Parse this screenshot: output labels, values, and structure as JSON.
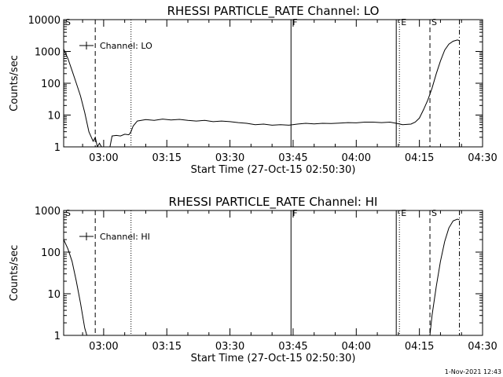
{
  "chart_data": [
    {
      "type": "line",
      "title": "RHESSI PARTICLE_RATE Channel: LO",
      "xlabel": "Start Time (27-Oct-15 02:50:30)",
      "ylabel": "Counts/sec",
      "yscale": "log",
      "ylim": [
        1,
        10000
      ],
      "y_ticks": [
        "1",
        "10",
        "100",
        "1000",
        "10000"
      ],
      "x_ticks": [
        "03:00",
        "03:15",
        "03:30",
        "03:45",
        "04:00",
        "04:15",
        "04:30"
      ],
      "grid": false,
      "legend": {
        "position": "top-left",
        "entries": [
          "Channel: LO"
        ]
      },
      "markers": [
        {
          "label": "S",
          "time": "02:50:30",
          "style": "dashed"
        },
        {
          "label": "",
          "time": "02:58:00",
          "style": "dashed"
        },
        {
          "label": "",
          "time": "03:06:30",
          "style": "dotted"
        },
        {
          "label": "F",
          "time": "03:44:30",
          "style": "solid"
        },
        {
          "label": "",
          "time": "04:09:30",
          "style": "solid"
        },
        {
          "label": "E",
          "time": "04:10:15",
          "style": "dotted"
        },
        {
          "label": "S",
          "time": "04:17:30",
          "style": "dashed"
        },
        {
          "label": "",
          "time": "04:24:30",
          "style": "dashdot"
        }
      ],
      "series": [
        {
          "name": "Channel: LO",
          "points": [
            [
              "02:50:30",
              1200
            ],
            [
              "02:51:30",
              600
            ],
            [
              "02:52:30",
              250
            ],
            [
              "02:53:30",
              100
            ],
            [
              "02:54:30",
              40
            ],
            [
              "02:55:30",
              12
            ],
            [
              "02:56:30",
              3
            ],
            [
              "02:57:30",
              1.5
            ],
            [
              "02:58:00",
              2
            ],
            [
              "02:58:30",
              1
            ],
            [
              "02:59:00",
              1.3
            ],
            [
              "02:59:30",
              1
            ],
            [
              "03:00:30",
              1
            ],
            [
              "03:01:30",
              1
            ],
            [
              "03:02:00",
              2.2
            ],
            [
              "03:03:00",
              2.3
            ],
            [
              "03:04:00",
              2.2
            ],
            [
              "03:05:00",
              2.5
            ],
            [
              "03:06:00",
              2.4
            ],
            [
              "03:06:30",
              3
            ],
            [
              "03:07:00",
              4.5
            ],
            [
              "03:08:00",
              6.5
            ],
            [
              "03:10:00",
              7.2
            ],
            [
              "03:12:00",
              6.8
            ],
            [
              "03:14:00",
              7.5
            ],
            [
              "03:16:00",
              7
            ],
            [
              "03:18:00",
              7.3
            ],
            [
              "03:20:00",
              6.8
            ],
            [
              "03:22:00",
              6.5
            ],
            [
              "03:24:00",
              6.8
            ],
            [
              "03:26:00",
              6.2
            ],
            [
              "03:28:00",
              6.5
            ],
            [
              "03:30:00",
              6.2
            ],
            [
              "03:32:00",
              5.8
            ],
            [
              "03:34:00",
              5.5
            ],
            [
              "03:36:00",
              5
            ],
            [
              "03:38:00",
              5.2
            ],
            [
              "03:40:00",
              4.8
            ],
            [
              "03:42:00",
              5
            ],
            [
              "03:44:00",
              4.8
            ],
            [
              "03:46:00",
              5.2
            ],
            [
              "03:48:00",
              5.5
            ],
            [
              "03:50:00",
              5.3
            ],
            [
              "03:52:00",
              5.5
            ],
            [
              "03:54:00",
              5.4
            ],
            [
              "03:56:00",
              5.6
            ],
            [
              "03:58:00",
              5.8
            ],
            [
              "04:00:00",
              5.7
            ],
            [
              "04:02:00",
              6
            ],
            [
              "04:04:00",
              6
            ],
            [
              "04:06:00",
              5.8
            ],
            [
              "04:08:00",
              6
            ],
            [
              "04:09:30",
              5.5
            ],
            [
              "04:11:00",
              5
            ],
            [
              "04:13:00",
              5.2
            ],
            [
              "04:14:00",
              6
            ],
            [
              "04:15:00",
              8
            ],
            [
              "04:16:00",
              15
            ],
            [
              "04:17:00",
              30
            ],
            [
              "04:18:00",
              70
            ],
            [
              "04:19:00",
              200
            ],
            [
              "04:20:00",
              500
            ],
            [
              "04:21:00",
              1100
            ],
            [
              "04:22:00",
              1700
            ],
            [
              "04:23:00",
              2100
            ],
            [
              "04:24:00",
              2300
            ],
            [
              "04:24:30",
              2200
            ]
          ]
        }
      ]
    },
    {
      "type": "line",
      "title": "RHESSI PARTICLE_RATE Channel: HI",
      "xlabel": "Start Time (27-Oct-15 02:50:30)",
      "ylabel": "Counts/sec",
      "yscale": "log",
      "ylim": [
        1,
        1000
      ],
      "y_ticks": [
        "1",
        "10",
        "100",
        "1000"
      ],
      "x_ticks": [
        "03:00",
        "03:15",
        "03:30",
        "03:45",
        "04:00",
        "04:15",
        "04:30"
      ],
      "grid": false,
      "legend": {
        "position": "top-left",
        "entries": [
          "Channel: HI"
        ]
      },
      "markers": [
        {
          "label": "S",
          "time": "02:50:30",
          "style": "dashed"
        },
        {
          "label": "",
          "time": "02:58:00",
          "style": "dashed"
        },
        {
          "label": "",
          "time": "03:06:30",
          "style": "dotted"
        },
        {
          "label": "F",
          "time": "03:44:30",
          "style": "solid"
        },
        {
          "label": "",
          "time": "04:09:30",
          "style": "solid"
        },
        {
          "label": "E",
          "time": "04:10:15",
          "style": "dotted"
        },
        {
          "label": "S",
          "time": "04:17:30",
          "style": "dashed"
        },
        {
          "label": "",
          "time": "04:24:30",
          "style": "dashdot"
        }
      ],
      "series": [
        {
          "name": "Channel: HI",
          "points": [
            [
              "02:50:30",
              200
            ],
            [
              "02:51:30",
              120
            ],
            [
              "02:52:30",
              60
            ],
            [
              "02:53:30",
              20
            ],
            [
              "02:54:30",
              6
            ],
            [
              "02:55:30",
              1.5
            ],
            [
              "02:56:00",
              1
            ]
          ]
        },
        {
          "name": "Channel: HI",
          "points": [
            [
              "04:17:30",
              1
            ],
            [
              "04:18:00",
              3
            ],
            [
              "04:19:00",
              15
            ],
            [
              "04:20:00",
              60
            ],
            [
              "04:21:00",
              180
            ],
            [
              "04:22:00",
              380
            ],
            [
              "04:23:00",
              560
            ],
            [
              "04:24:00",
              620
            ],
            [
              "04:24:30",
              600
            ]
          ]
        }
      ]
    }
  ],
  "footer": {
    "timestamp": "1-Nov-2021 12:43"
  }
}
